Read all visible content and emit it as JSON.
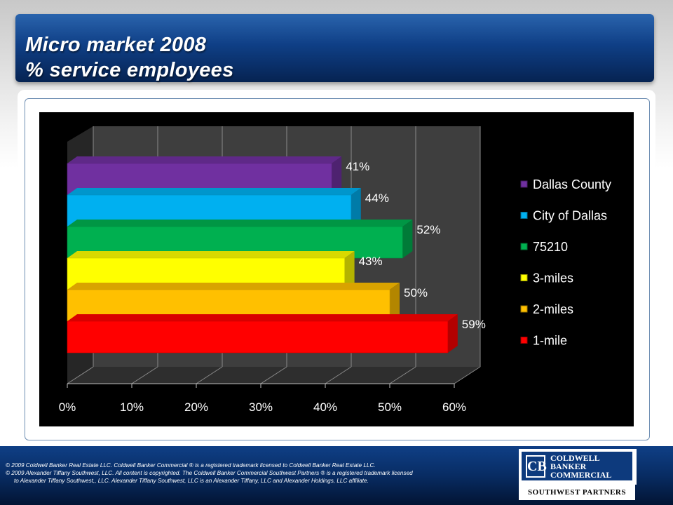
{
  "title": {
    "line1": "Micro market 2008",
    "line2": "% service employees"
  },
  "chart_data": {
    "type": "bar",
    "orientation": "horizontal",
    "style": "3d",
    "categories": [
      "Dallas County",
      "City of Dallas",
      "75210",
      "3-miles",
      "2-miles",
      "1-mile"
    ],
    "values": [
      41,
      44,
      52,
      43,
      50,
      59
    ],
    "value_labels": [
      "41%",
      "44%",
      "52%",
      "43%",
      "50%",
      "59%"
    ],
    "colors": [
      "#7030a0",
      "#00b0f0",
      "#00b050",
      "#ffff00",
      "#ffc000",
      "#ff0000"
    ],
    "xlim": [
      0,
      60
    ],
    "x_ticks": [
      "0%",
      "10%",
      "20%",
      "30%",
      "40%",
      "50%",
      "60%"
    ],
    "grid": true,
    "legend_placement": "right",
    "title": "",
    "xlabel": "",
    "ylabel": ""
  },
  "footer": {
    "line1": "© 2009 Coldwell Banker Real Estate LLC. Coldwell Banker Commercial ® is a registered trademark licensed to Coldwell Banker Real Estate LLC.",
    "line2": "© 2009 Alexander Tiffany Southwest, LLC. All content is copyrighted. The Coldwell Banker Commercial Southwest Partners ® is a registered trademark licensed",
    "line3": "to Alexander Tiffany Southwest,, LLC.  Alexander Tiffany Southwest, LLC is an Alexander Tiffany, LLC and Alexander Holdings, LLC affiliate."
  },
  "logo": {
    "mark": "CB",
    "line1": "COLDWELL",
    "line2": "BANKER",
    "line3": "COMMERCIAL",
    "subtitle": "SOUTHWEST PARTNERS"
  }
}
